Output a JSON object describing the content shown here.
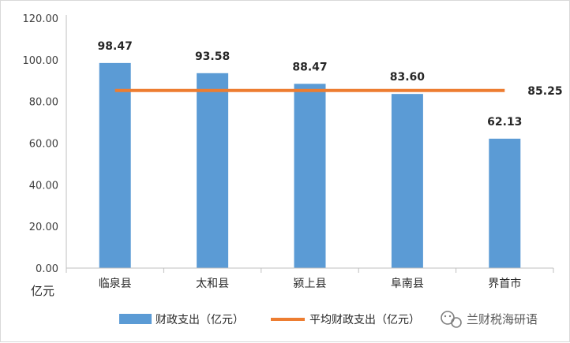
{
  "chart_data": {
    "type": "bar",
    "categories": [
      "临泉县",
      "太和县",
      "颍上县",
      "阜南县",
      "界首市"
    ],
    "series": [
      {
        "name": "财政支出（亿元）",
        "values": [
          98.47,
          93.58,
          88.47,
          83.6,
          62.13
        ],
        "color": "#5b9bd5",
        "kind": "bar"
      },
      {
        "name": "平均财政支出（亿元）",
        "values": [
          85.25,
          85.25,
          85.25,
          85.25,
          85.25
        ],
        "color": "#ed7d31",
        "kind": "line"
      }
    ],
    "data_labels": [
      "98.47",
      "93.58",
      "88.47",
      "83.60",
      "62.13"
    ],
    "average_label": "85.25",
    "ylim": [
      0,
      120
    ],
    "yticks": [
      "0.00",
      "20.00",
      "40.00",
      "60.00",
      "80.00",
      "100.00",
      "120.00"
    ],
    "ylabel": "亿元",
    "grid": false,
    "legend_position": "bottom"
  },
  "watermark": {
    "text": "兰财税海研语"
  }
}
